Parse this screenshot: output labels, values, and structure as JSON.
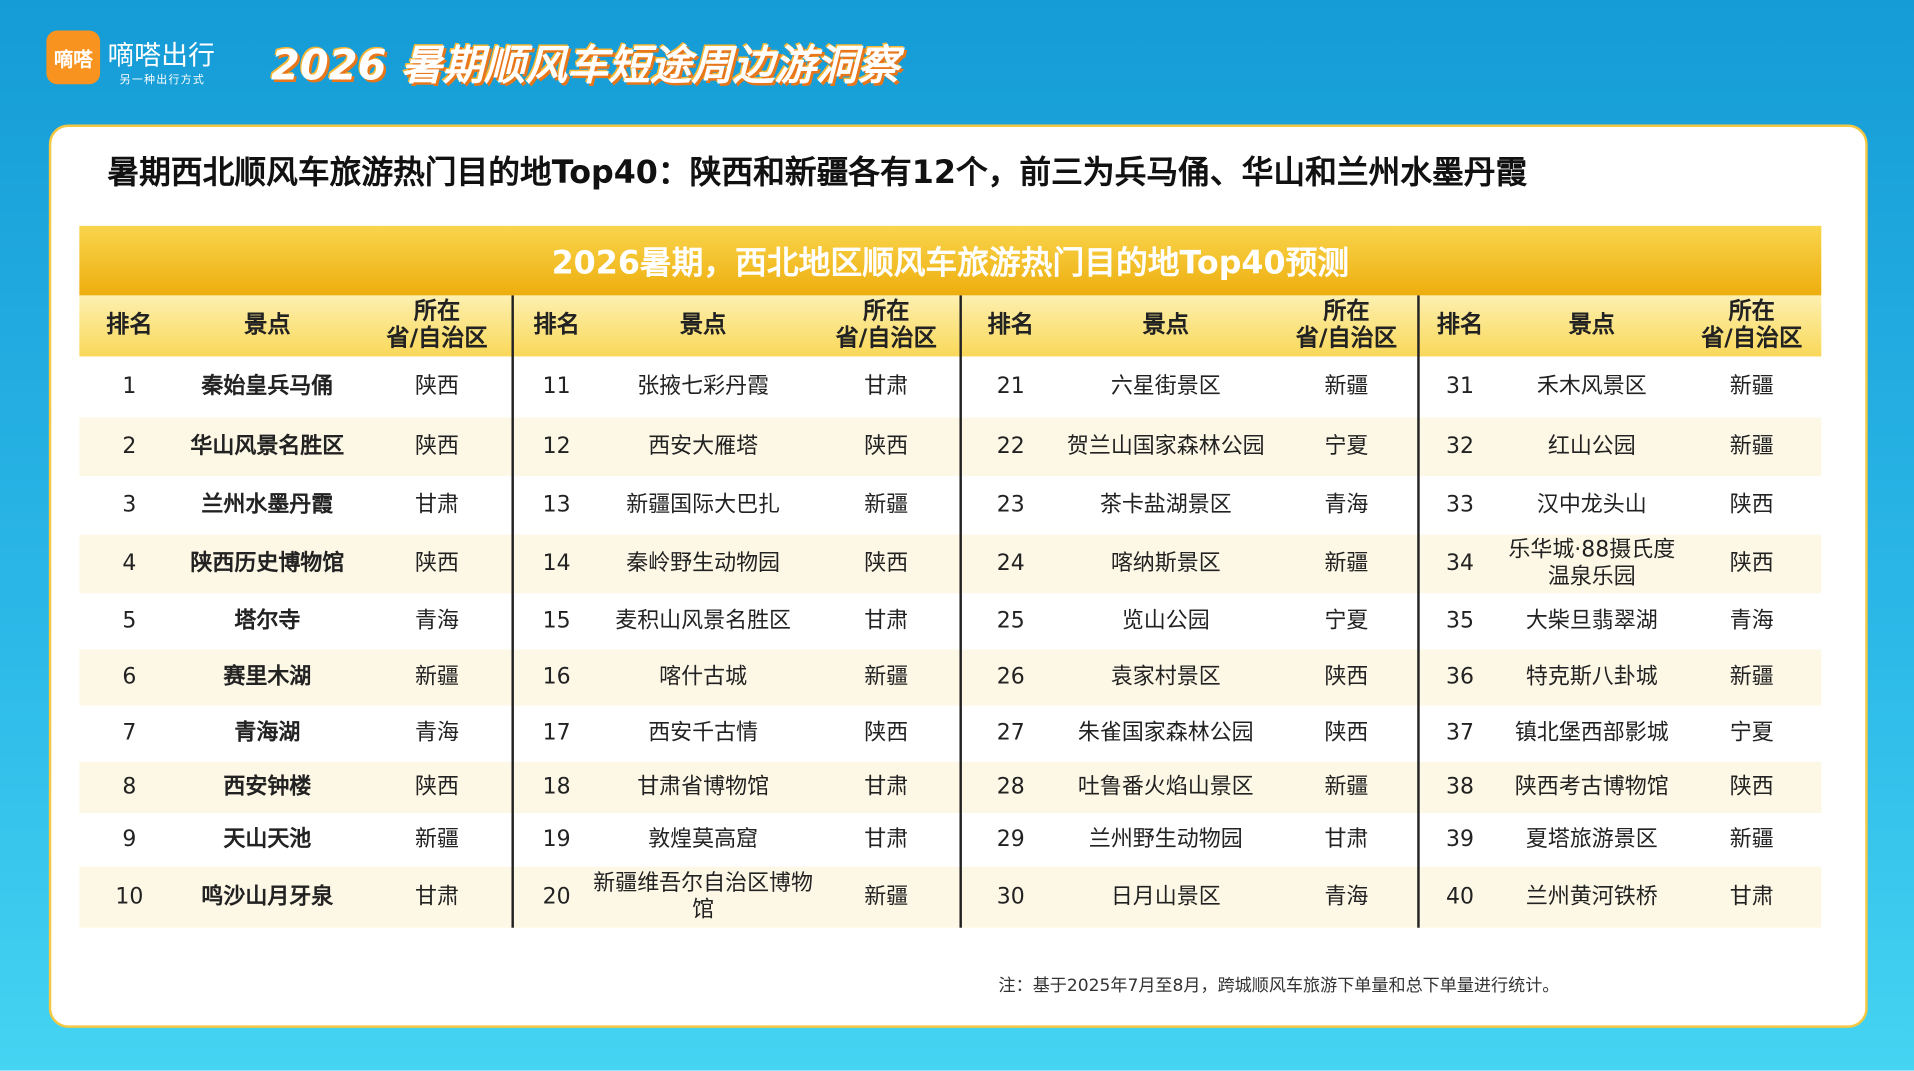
{
  "header": {
    "logo": "嘀嗒",
    "brand": "嘀嗒出行",
    "slogan": "另一种出行方式",
    "title": "2026 暑期顺风车短途周边游洞察"
  },
  "heading": "暑期西北顺风车旅游热门目的地Top40：陕西和新疆各有12个，前三为兵马俑、华山和兰州水墨丹霞",
  "table": {
    "title": "2026暑期，西北地区顺风车旅游热门目的地Top40预测",
    "columns": [
      "排名",
      "景点",
      "所在\n省/自治区"
    ],
    "rows": [
      [
        1,
        "秦始皇兵马俑",
        "陕西"
      ],
      [
        2,
        "华山风景名胜区",
        "陕西"
      ],
      [
        3,
        "兰州水墨丹霞",
        "甘肃"
      ],
      [
        4,
        "陕西历史博物馆",
        "陕西"
      ],
      [
        5,
        "塔尔寺",
        "青海"
      ],
      [
        6,
        "赛里木湖",
        "新疆"
      ],
      [
        7,
        "青海湖",
        "青海"
      ],
      [
        8,
        "西安钟楼",
        "陕西"
      ],
      [
        9,
        "天山天池",
        "新疆"
      ],
      [
        10,
        "鸣沙山月牙泉",
        "甘肃"
      ],
      [
        11,
        "张掖七彩丹霞",
        "甘肃"
      ],
      [
        12,
        "西安大雁塔",
        "陕西"
      ],
      [
        13,
        "新疆国际大巴扎",
        "新疆"
      ],
      [
        14,
        "秦岭野生动物园",
        "陕西"
      ],
      [
        15,
        "麦积山风景名胜区",
        "甘肃"
      ],
      [
        16,
        "喀什古城",
        "新疆"
      ],
      [
        17,
        "西安千古情",
        "陕西"
      ],
      [
        18,
        "甘肃省博物馆",
        "甘肃"
      ],
      [
        19,
        "敦煌莫高窟",
        "甘肃"
      ],
      [
        20,
        "新疆维吾尔自治区博物馆",
        "新疆"
      ],
      [
        21,
        "六星街景区",
        "新疆"
      ],
      [
        22,
        "贺兰山国家森林公园",
        "宁夏"
      ],
      [
        23,
        "茶卡盐湖景区",
        "青海"
      ],
      [
        24,
        "喀纳斯景区",
        "新疆"
      ],
      [
        25,
        "览山公园",
        "宁夏"
      ],
      [
        26,
        "袁家村景区",
        "陕西"
      ],
      [
        27,
        "朱雀国家森林公园",
        "陕西"
      ],
      [
        28,
        "吐鲁番火焰山景区",
        "新疆"
      ],
      [
        29,
        "兰州野生动物园",
        "甘肃"
      ],
      [
        30,
        "日月山景区",
        "青海"
      ],
      [
        31,
        "禾木风景区",
        "新疆"
      ],
      [
        32,
        "红山公园",
        "新疆"
      ],
      [
        33,
        "汉中龙头山",
        "陕西"
      ],
      [
        34,
        "乐华城·88摄氏度温泉乐园",
        "陕西"
      ],
      [
        35,
        "大柴旦翡翠湖",
        "青海"
      ],
      [
        36,
        "特克斯八卦城",
        "新疆"
      ],
      [
        37,
        "镇北堡西部影城",
        "宁夏"
      ],
      [
        38,
        "陕西考古博物馆",
        "陕西"
      ],
      [
        39,
        "夏塔旅游景区",
        "新疆"
      ],
      [
        40,
        "兰州黄河铁桥",
        "甘肃"
      ]
    ]
  },
  "note": "注：基于2025年7月至8月，跨城顺风车旅游下单量和总下单量进行统计。"
}
